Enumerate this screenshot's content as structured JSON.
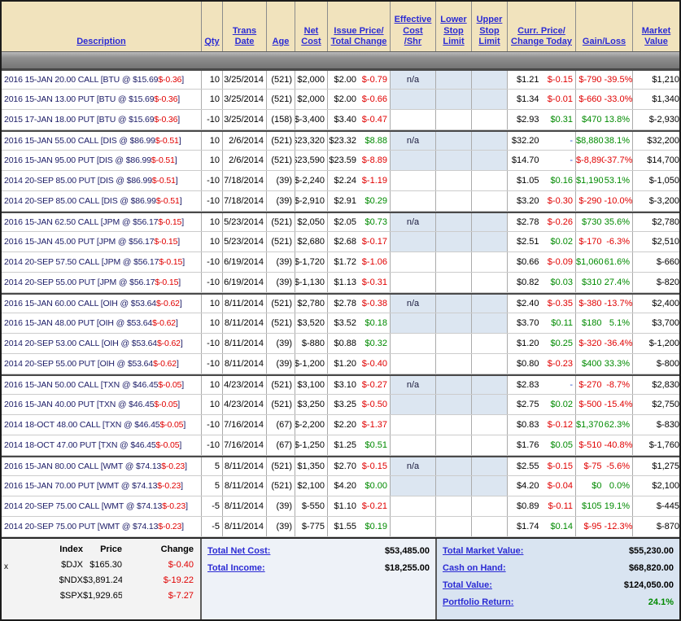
{
  "colors": {
    "header_bg": "#f1e3bd",
    "header_link": "#2b2bd4",
    "band_bg": "#dce6f1",
    "positive": "#008a00",
    "negative": "#e00000",
    "neutral_dash": "#2952cc"
  },
  "header": {
    "columns": [
      {
        "label": "Description"
      },
      {
        "label": "Qty"
      },
      {
        "label": "Trans\nDate"
      },
      {
        "label": "Age"
      },
      {
        "label": "Net\nCost"
      },
      {
        "label": "Issue Price/\nTotal Change"
      },
      {
        "label": "Effective\nCost\n/Shr"
      },
      {
        "label": "Lower\nStop\nLimit"
      },
      {
        "label": "Upper\nStop\nLimit"
      },
      {
        "label": "Curr. Price/\nChange Today"
      },
      {
        "label": "Gain/Loss"
      },
      {
        "label": "Market\nValue"
      }
    ]
  },
  "table": {
    "rows": [
      {
        "group_start": true,
        "band": true,
        "desc": "2016 15-JAN 20.00 CALL [BTU @ $15.69 ",
        "desc_chg": "$-0.36",
        "desc_end": "]",
        "qty": "10",
        "date": "3/25/2014",
        "age": "(521)",
        "net": "$2,000",
        "issue": "$2.00",
        "tchg": "$-0.79",
        "eff": "n/a",
        "curr": "$1.21",
        "cchg": "$-0.15",
        "gain": "$-790",
        "pct": "-39.5%",
        "mkt": "$1,210"
      },
      {
        "band": true,
        "desc": "2016 15-JAN 13.00 PUT [BTU @ $15.69 ",
        "desc_chg": "$-0.36",
        "desc_end": "]",
        "qty": "10",
        "date": "3/25/2014",
        "age": "(521)",
        "net": "$2,000",
        "issue": "$2.00",
        "tchg": "$-0.66",
        "curr": "$1.34",
        "cchg": "$-0.01",
        "gain": "$-660",
        "pct": "-33.0%",
        "mkt": "$1,340"
      },
      {
        "desc": "2015 17-JAN 18.00 PUT [BTU @ $15.69 ",
        "desc_chg": "$-0.36",
        "desc_end": "]",
        "qty": "-10",
        "date": "3/25/2014",
        "age": "(158)",
        "net": "$-3,400",
        "issue": "$3.40",
        "tchg": "$-0.47",
        "curr": "$2.93",
        "cchg": "$0.31",
        "gain": "$470",
        "pct": "13.8%",
        "mkt": "$-2,930"
      },
      {
        "group_start": true,
        "band": true,
        "desc": "2016 15-JAN 55.00 CALL [DIS @ $86.99 ",
        "desc_chg": "$-0.51",
        "desc_end": "]",
        "qty": "10",
        "date": "2/6/2014",
        "age": "(521)",
        "net": "$23,320",
        "issue": "$23.32",
        "tchg": "$8.88",
        "eff": "n/a",
        "curr": "$32.20",
        "cchg": "-",
        "gain": "$8,880",
        "pct": "38.1%",
        "mkt": "$32,200"
      },
      {
        "band": true,
        "desc": "2016 15-JAN 95.00 PUT [DIS @ $86.99 ",
        "desc_chg": "$-0.51",
        "desc_end": "]",
        "qty": "10",
        "date": "2/6/2014",
        "age": "(521)",
        "net": "$23,590",
        "issue": "$23.59",
        "tchg": "$-8.89",
        "curr": "$14.70",
        "cchg": "-",
        "gain": "$-8,890",
        "pct": "-37.7%",
        "mkt": "$14,700"
      },
      {
        "desc": "2014 20-SEP 85.00 PUT [DIS @ $86.99 ",
        "desc_chg": "$-0.51",
        "desc_end": "]",
        "qty": "-10",
        "date": "7/18/2014",
        "age": "(39)",
        "net": "$-2,240",
        "issue": "$2.24",
        "tchg": "$-1.19",
        "curr": "$1.05",
        "cchg": "$0.16",
        "gain": "$1,190",
        "pct": "53.1%",
        "mkt": "$-1,050"
      },
      {
        "desc": "2014 20-SEP 85.00 CALL [DIS @ $86.99 ",
        "desc_chg": "$-0.51",
        "desc_end": "]",
        "qty": "-10",
        "date": "7/18/2014",
        "age": "(39)",
        "net": "$-2,910",
        "issue": "$2.91",
        "tchg": "$0.29",
        "curr": "$3.20",
        "cchg": "$-0.30",
        "gain": "$-290",
        "pct": "-10.0%",
        "mkt": "$-3,200"
      },
      {
        "group_start": true,
        "band": true,
        "desc": "2016 15-JAN 62.50 CALL [JPM @ $56.17 ",
        "desc_chg": "$-0.15",
        "desc_end": "]",
        "qty": "10",
        "date": "5/23/2014",
        "age": "(521)",
        "net": "$2,050",
        "issue": "$2.05",
        "tchg": "$0.73",
        "eff": "n/a",
        "curr": "$2.78",
        "cchg": "$-0.26",
        "gain": "$730",
        "pct": "35.6%",
        "mkt": "$2,780"
      },
      {
        "band": true,
        "desc": "2016 15-JAN 45.00 PUT [JPM @ $56.17 ",
        "desc_chg": "$-0.15",
        "desc_end": "]",
        "qty": "10",
        "date": "5/23/2014",
        "age": "(521)",
        "net": "$2,680",
        "issue": "$2.68",
        "tchg": "$-0.17",
        "curr": "$2.51",
        "cchg": "$0.02",
        "gain": "$-170",
        "pct": "-6.3%",
        "mkt": "$2,510"
      },
      {
        "desc": "2014 20-SEP 57.50 CALL [JPM @ $56.17 ",
        "desc_chg": "$-0.15",
        "desc_end": "]",
        "qty": "-10",
        "date": "6/19/2014",
        "age": "(39)",
        "net": "$-1,720",
        "issue": "$1.72",
        "tchg": "$-1.06",
        "curr": "$0.66",
        "cchg": "$-0.09",
        "gain": "$1,060",
        "pct": "61.6%",
        "mkt": "$-660"
      },
      {
        "desc": "2014 20-SEP 55.00 PUT [JPM @ $56.17 ",
        "desc_chg": "$-0.15",
        "desc_end": "]",
        "qty": "-10",
        "date": "6/19/2014",
        "age": "(39)",
        "net": "$-1,130",
        "issue": "$1.13",
        "tchg": "$-0.31",
        "curr": "$0.82",
        "cchg": "$0.03",
        "gain": "$310",
        "pct": "27.4%",
        "mkt": "$-820"
      },
      {
        "group_start": true,
        "band": true,
        "desc": "2016 15-JAN 60.00 CALL [OIH @ $53.64 ",
        "desc_chg": "$-0.62",
        "desc_end": "]",
        "qty": "10",
        "date": "8/11/2014",
        "age": "(521)",
        "net": "$2,780",
        "issue": "$2.78",
        "tchg": "$-0.38",
        "eff": "n/a",
        "curr": "$2.40",
        "cchg": "$-0.35",
        "gain": "$-380",
        "pct": "-13.7%",
        "mkt": "$2,400"
      },
      {
        "band": true,
        "desc": "2016 15-JAN 48.00 PUT [OIH @ $53.64 ",
        "desc_chg": "$-0.62",
        "desc_end": "]",
        "qty": "10",
        "date": "8/11/2014",
        "age": "(521)",
        "net": "$3,520",
        "issue": "$3.52",
        "tchg": "$0.18",
        "curr": "$3.70",
        "cchg": "$0.11",
        "gain": "$180",
        "pct": "5.1%",
        "mkt": "$3,700"
      },
      {
        "desc": "2014 20-SEP 53.00 CALL [OIH @ $53.64 ",
        "desc_chg": "$-0.62",
        "desc_end": "]",
        "qty": "-10",
        "date": "8/11/2014",
        "age": "(39)",
        "net": "$-880",
        "issue": "$0.88",
        "tchg": "$0.32",
        "curr": "$1.20",
        "cchg": "$0.25",
        "gain": "$-320",
        "pct": "-36.4%",
        "mkt": "$-1,200"
      },
      {
        "desc": "2014 20-SEP 55.00 PUT [OIH @ $53.64 ",
        "desc_chg": "$-0.62",
        "desc_end": "]",
        "qty": "-10",
        "date": "8/11/2014",
        "age": "(39)",
        "net": "$-1,200",
        "issue": "$1.20",
        "tchg": "$-0.40",
        "curr": "$0.80",
        "cchg": "$-0.23",
        "gain": "$400",
        "pct": "33.3%",
        "mkt": "$-800"
      },
      {
        "group_start": true,
        "band": true,
        "desc": "2016 15-JAN 50.00 CALL [TXN @ $46.45 ",
        "desc_chg": "$-0.05",
        "desc_end": "]",
        "qty": "10",
        "date": "4/23/2014",
        "age": "(521)",
        "net": "$3,100",
        "issue": "$3.10",
        "tchg": "$-0.27",
        "eff": "n/a",
        "curr": "$2.83",
        "cchg": "-",
        "gain": "$-270",
        "pct": "-8.7%",
        "mkt": "$2,830"
      },
      {
        "band": true,
        "desc": "2016 15-JAN 40.00 PUT [TXN @ $46.45 ",
        "desc_chg": "$-0.05",
        "desc_end": "]",
        "qty": "10",
        "date": "4/23/2014",
        "age": "(521)",
        "net": "$3,250",
        "issue": "$3.25",
        "tchg": "$-0.50",
        "curr": "$2.75",
        "cchg": "$0.02",
        "gain": "$-500",
        "pct": "-15.4%",
        "mkt": "$2,750"
      },
      {
        "desc": "2014 18-OCT 48.00 CALL [TXN @ $46.45 ",
        "desc_chg": "$-0.05",
        "desc_end": "]",
        "qty": "-10",
        "date": "7/16/2014",
        "age": "(67)",
        "net": "$-2,200",
        "issue": "$2.20",
        "tchg": "$-1.37",
        "curr": "$0.83",
        "cchg": "$-0.12",
        "gain": "$1,370",
        "pct": "62.3%",
        "mkt": "$-830"
      },
      {
        "desc": "2014 18-OCT 47.00 PUT [TXN @ $46.45 ",
        "desc_chg": "$-0.05",
        "desc_end": "]",
        "qty": "-10",
        "date": "7/16/2014",
        "age": "(67)",
        "net": "$-1,250",
        "issue": "$1.25",
        "tchg": "$0.51",
        "curr": "$1.76",
        "cchg": "$0.05",
        "gain": "$-510",
        "pct": "-40.8%",
        "mkt": "$-1,760"
      },
      {
        "group_start": true,
        "band": true,
        "desc": "2016 15-JAN 80.00 CALL [WMT @ $74.13 ",
        "desc_chg": "$-0.23",
        "desc_end": "]",
        "qty": "5",
        "date": "8/11/2014",
        "age": "(521)",
        "net": "$1,350",
        "issue": "$2.70",
        "tchg": "$-0.15",
        "eff": "n/a",
        "curr": "$2.55",
        "cchg": "$-0.15",
        "gain": "$-75",
        "pct": "-5.6%",
        "mkt": "$1,275"
      },
      {
        "band": true,
        "desc": "2016 15-JAN 70.00 PUT [WMT @ $74.13 ",
        "desc_chg": "$-0.23",
        "desc_end": "]",
        "qty": "5",
        "date": "8/11/2014",
        "age": "(521)",
        "net": "$2,100",
        "issue": "$4.20",
        "tchg": "$0.00",
        "curr": "$4.20",
        "cchg": "$-0.04",
        "gain": "$0",
        "pct": "0.0%",
        "mkt": "$2,100"
      },
      {
        "desc": "2014 20-SEP 75.00 CALL [WMT @ $74.13 ",
        "desc_chg": "$-0.23",
        "desc_end": "]",
        "qty": "-5",
        "date": "8/11/2014",
        "age": "(39)",
        "net": "$-550",
        "issue": "$1.10",
        "tchg": "$-0.21",
        "curr": "$0.89",
        "cchg": "$-0.11",
        "gain": "$105",
        "pct": "19.1%",
        "mkt": "$-445"
      },
      {
        "desc": "2014 20-SEP 75.00 PUT [WMT @ $74.13 ",
        "desc_chg": "$-0.23",
        "desc_end": "]",
        "qty": "-5",
        "date": "8/11/2014",
        "age": "(39)",
        "net": "$-775",
        "issue": "$1.55",
        "tchg": "$0.19",
        "curr": "$1.74",
        "cchg": "$0.14",
        "gain": "$-95",
        "pct": "-12.3%",
        "mkt": "$-870"
      }
    ]
  },
  "footer": {
    "corner_label": "x",
    "indices": {
      "headers": [
        "Index",
        "Price",
        "Change"
      ],
      "rows": [
        {
          "symbol": "$DJX",
          "price": "$165.30",
          "change": "$-0.40"
        },
        {
          "symbol": "$NDX",
          "price": "$3,891.24",
          "change": "$-19.22"
        },
        {
          "symbol": "$SPX",
          "price": "$1,929.65",
          "change": "$-7.27"
        }
      ]
    },
    "totals_left": [
      {
        "label": "Total Net Cost:",
        "value": "$53,485.00"
      },
      {
        "label": "Total Income:",
        "value": "$18,255.00"
      }
    ],
    "totals_right": [
      {
        "label": "Total Market Value:",
        "value": "$55,230.00"
      },
      {
        "label": "Cash on Hand:",
        "value": "$68,820.00"
      },
      {
        "label": "Total Value:",
        "value": "$124,050.00"
      },
      {
        "label": "Portfolio Return:",
        "value": "24.1%"
      }
    ]
  }
}
